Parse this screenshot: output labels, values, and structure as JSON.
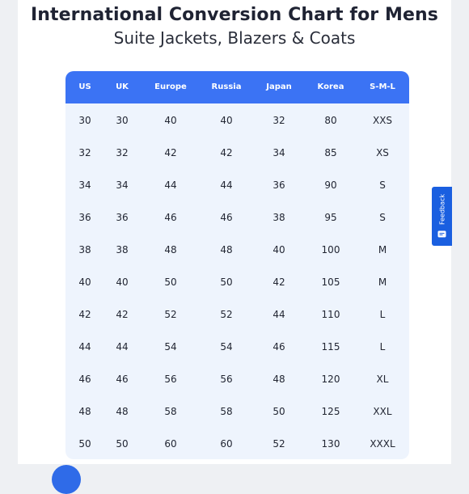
{
  "header": {
    "title": "International Conversion Chart for Mens",
    "subtitle": "Suite Jackets, Blazers & Coats"
  },
  "table": {
    "columns": [
      "US",
      "UK",
      "Europe",
      "Russia",
      "Japan",
      "Korea",
      "S-M-L"
    ],
    "rows": [
      [
        "30",
        "30",
        "40",
        "40",
        "32",
        "80",
        "XXS"
      ],
      [
        "32",
        "32",
        "42",
        "42",
        "34",
        "85",
        "XS"
      ],
      [
        "34",
        "34",
        "44",
        "44",
        "36",
        "90",
        "S"
      ],
      [
        "36",
        "36",
        "46",
        "46",
        "38",
        "95",
        "S"
      ],
      [
        "38",
        "38",
        "48",
        "48",
        "40",
        "100",
        "M"
      ],
      [
        "40",
        "40",
        "50",
        "50",
        "42",
        "105",
        "M"
      ],
      [
        "42",
        "42",
        "52",
        "52",
        "44",
        "110",
        "L"
      ],
      [
        "44",
        "44",
        "54",
        "54",
        "46",
        "115",
        "L"
      ],
      [
        "46",
        "46",
        "56",
        "56",
        "48",
        "120",
        "XL"
      ],
      [
        "48",
        "48",
        "58",
        "58",
        "50",
        "125",
        "XXL"
      ],
      [
        "50",
        "50",
        "60",
        "60",
        "52",
        "130",
        "XXXL"
      ]
    ]
  },
  "feedback": {
    "label": "Feedback",
    "icon": "feedback-chat-icon"
  },
  "colors": {
    "header_bg": "#3b73f4",
    "table_bg": "#eef4fd",
    "feedback_bg": "#1a5fe0",
    "title_text": "#1f2333"
  }
}
